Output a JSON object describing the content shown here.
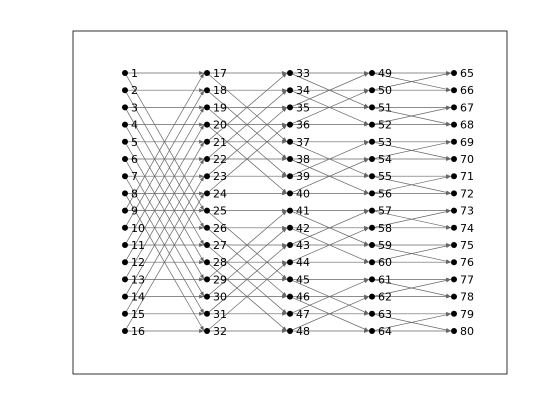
{
  "diagram": {
    "type": "butterfly-network",
    "stages": 5,
    "nodes_per_stage": 16,
    "stage_labels": [
      [
        "1",
        "2",
        "3",
        "4",
        "5",
        "6",
        "7",
        "8",
        "9",
        "10",
        "11",
        "12",
        "13",
        "14",
        "15",
        "16"
      ],
      [
        "17",
        "18",
        "19",
        "20",
        "21",
        "22",
        "23",
        "24",
        "25",
        "26",
        "27",
        "28",
        "29",
        "30",
        "31",
        "32"
      ],
      [
        "33",
        "34",
        "35",
        "36",
        "37",
        "38",
        "39",
        "40",
        "41",
        "42",
        "43",
        "44",
        "45",
        "46",
        "47",
        "48"
      ],
      [
        "49",
        "50",
        "51",
        "52",
        "53",
        "54",
        "55",
        "56",
        "57",
        "58",
        "59",
        "60",
        "61",
        "62",
        "63",
        "64"
      ],
      [
        "65",
        "66",
        "67",
        "68",
        "69",
        "70",
        "71",
        "72",
        "73",
        "74",
        "75",
        "76",
        "77",
        "78",
        "79",
        "80"
      ]
    ],
    "cross_strides": [
      8,
      4,
      2,
      1
    ],
    "colors": {
      "node": "#000000",
      "edge": "#666666",
      "frame": "#000000",
      "background": "#ffffff"
    }
  }
}
